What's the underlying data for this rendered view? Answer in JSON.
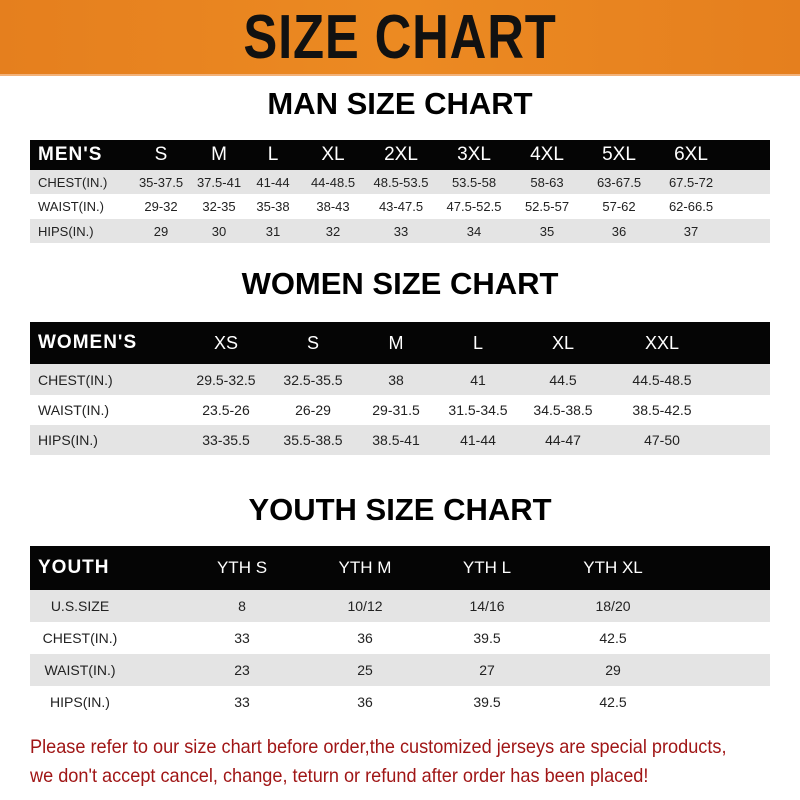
{
  "banner": {
    "title": "SIZE CHART",
    "color": "#e8831f"
  },
  "men": {
    "title": "MAN SIZE CHART",
    "header": "MEN'S",
    "sizes": [
      "S",
      "M",
      "L",
      "XL",
      "2XL",
      "3XL",
      "4XL",
      "5XL",
      "6XL"
    ],
    "rows": [
      {
        "label": "CHEST(IN.)",
        "values": [
          "35-37.5",
          "37.5-41",
          "41-44",
          "44-48.5",
          "48.5-53.5",
          "53.5-58",
          "58-63",
          "63-67.5",
          "67.5-72"
        ]
      },
      {
        "label": "WAIST(IN.)",
        "values": [
          "29-32",
          "32-35",
          "35-38",
          "38-43",
          "43-47.5",
          "47.5-52.5",
          "52.5-57",
          "57-62",
          "62-66.5"
        ]
      },
      {
        "label": "HIPS(IN.)",
        "values": [
          "29",
          "30",
          "31",
          "32",
          "33",
          "34",
          "35",
          "36",
          "37"
        ]
      }
    ]
  },
  "women": {
    "title": "WOMEN SIZE CHART",
    "header": "WOMEN'S",
    "sizes": [
      "XS",
      "S",
      "M",
      "L",
      "XL",
      "XXL"
    ],
    "rows": [
      {
        "label": "CHEST(IN.)",
        "values": [
          "29.5-32.5",
          "32.5-35.5",
          "38",
          "41",
          "44.5",
          "44.5-48.5"
        ]
      },
      {
        "label": "WAIST(IN.)",
        "values": [
          "23.5-26",
          "26-29",
          "29-31.5",
          "31.5-34.5",
          "34.5-38.5",
          "38.5-42.5"
        ]
      },
      {
        "label": "HIPS(IN.)",
        "values": [
          "33-35.5",
          "35.5-38.5",
          "38.5-41",
          "41-44",
          "44-47",
          "47-50"
        ]
      }
    ]
  },
  "youth": {
    "title": "YOUTH SIZE CHART",
    "header": "YOUTH",
    "sizes": [
      "YTH S",
      "YTH M",
      "YTH L",
      "YTH XL"
    ],
    "rows": [
      {
        "label": "U.S.SIZE",
        "values": [
          "8",
          "10/12",
          "14/16",
          "18/20"
        ]
      },
      {
        "label": "CHEST(IN.)",
        "values": [
          "33",
          "36",
          "39.5",
          "42.5"
        ]
      },
      {
        "label": "WAIST(IN.)",
        "values": [
          "23",
          "25",
          "27",
          "29"
        ]
      },
      {
        "label": "HIPS(IN.)",
        "values": [
          "33",
          "36",
          "39.5",
          "42.5"
        ]
      }
    ]
  },
  "notice": {
    "line1": "Please refer to our size chart before order,the customized jerseys are special products,",
    "line2": "we don't accept cancel, change, teturn or refund after order has been placed!",
    "color": "#a01616"
  }
}
